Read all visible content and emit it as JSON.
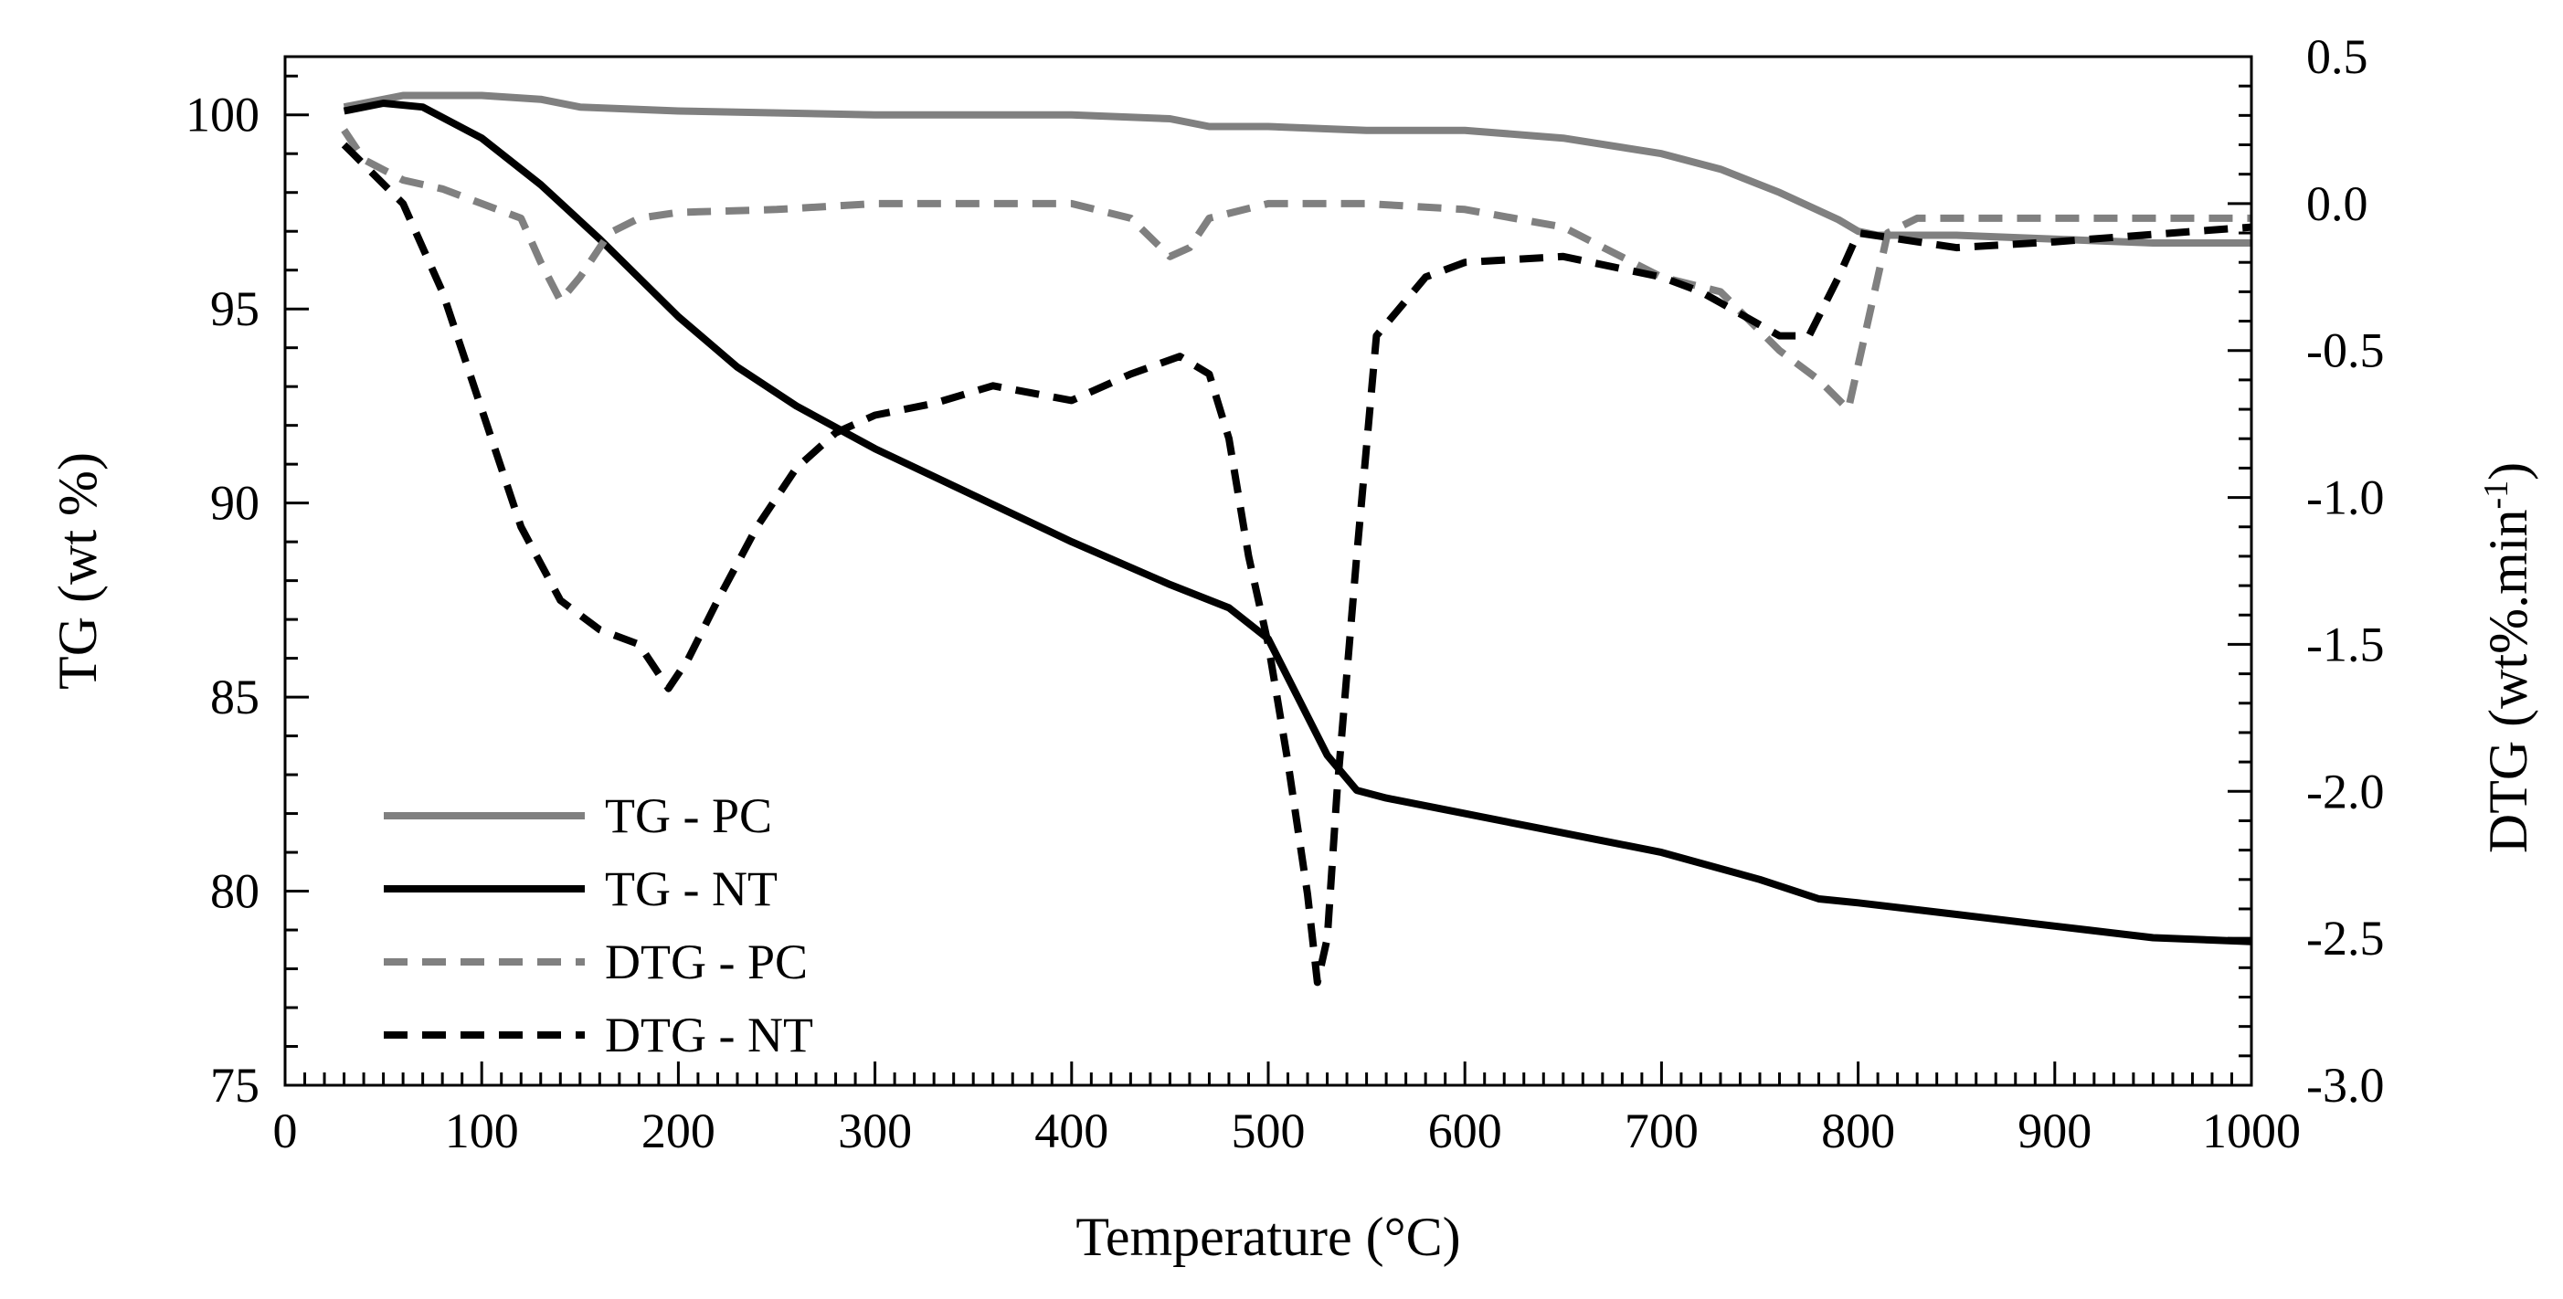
{
  "chart_data": {
    "type": "line",
    "xlabel": "Temperature (°C)",
    "ylabel": "TG (wt %)",
    "y2label_main": "DTG (wt%.min",
    "y2label_sup": "-1",
    "y2label_end": ")",
    "xlim": [
      0,
      1000
    ],
    "ylim": [
      75,
      101.5
    ],
    "y2lim": [
      -3.0,
      0.5
    ],
    "grid": false,
    "legend_position": "bottom-left",
    "x_ticks": [
      "0",
      "100",
      "200",
      "300",
      "400",
      "500",
      "600",
      "700",
      "800",
      "900",
      "1000"
    ],
    "y_ticks": [
      "75",
      "80",
      "85",
      "90",
      "95",
      "100"
    ],
    "y2_ticks": [
      "-3.0",
      "-2.5",
      "-2.0",
      "-1.5",
      "-1.0",
      "-0.5",
      "0.0",
      "0.5"
    ],
    "series": [
      {
        "name": "TG - PC",
        "axis": "left",
        "color": "#808080",
        "dash": "solid",
        "x": [
          30,
          60,
          100,
          130,
          150,
          200,
          300,
          400,
          450,
          470,
          500,
          550,
          600,
          650,
          700,
          730,
          760,
          790,
          800,
          810,
          850,
          900,
          950,
          1000
        ],
        "y": [
          100.2,
          100.5,
          100.5,
          100.4,
          100.2,
          100.1,
          100.0,
          100.0,
          99.9,
          99.7,
          99.7,
          99.6,
          99.6,
          99.4,
          99.0,
          98.6,
          98.0,
          97.3,
          97.0,
          96.9,
          96.9,
          96.8,
          96.7,
          96.7
        ]
      },
      {
        "name": "TG - NT",
        "axis": "left",
        "color": "#000000",
        "dash": "solid",
        "x": [
          30,
          50,
          70,
          100,
          130,
          160,
          200,
          230,
          260,
          300,
          350,
          400,
          450,
          480,
          500,
          515,
          530,
          545,
          560,
          600,
          650,
          700,
          750,
          780,
          800,
          850,
          900,
          950,
          1000
        ],
        "y": [
          100.1,
          100.3,
          100.2,
          99.4,
          98.2,
          96.8,
          94.8,
          93.5,
          92.5,
          91.4,
          90.2,
          89.0,
          87.9,
          87.3,
          86.5,
          85.0,
          83.5,
          82.6,
          82.4,
          82.0,
          81.5,
          81.0,
          80.3,
          79.8,
          79.7,
          79.4,
          79.1,
          78.8,
          78.7
        ]
      },
      {
        "name": "DTG - PC",
        "axis": "right",
        "color": "#808080",
        "dash": "dashed",
        "x": [
          30,
          40,
          60,
          80,
          100,
          120,
          130,
          140,
          150,
          165,
          180,
          200,
          250,
          300,
          350,
          400,
          430,
          450,
          460,
          470,
          500,
          550,
          600,
          650,
          700,
          730,
          760,
          780,
          795,
          805,
          815,
          830,
          900,
          1000
        ],
        "y": [
          0.25,
          0.15,
          0.08,
          0.05,
          0.0,
          -0.05,
          -0.2,
          -0.33,
          -0.25,
          -0.1,
          -0.05,
          -0.03,
          -0.02,
          0.0,
          0.0,
          0.0,
          -0.05,
          -0.18,
          -0.15,
          -0.05,
          0.0,
          0.0,
          -0.02,
          -0.08,
          -0.25,
          -0.3,
          -0.5,
          -0.6,
          -0.7,
          -0.4,
          -0.1,
          -0.05,
          -0.05,
          -0.05
        ]
      },
      {
        "name": "DTG - NT",
        "axis": "right",
        "color": "#000000",
        "dash": "dashed",
        "x": [
          30,
          45,
          60,
          80,
          100,
          120,
          140,
          160,
          180,
          195,
          205,
          220,
          240,
          260,
          280,
          300,
          330,
          360,
          400,
          430,
          455,
          470,
          480,
          490,
          500,
          510,
          520,
          525,
          530,
          535,
          545,
          555,
          580,
          600,
          650,
          700,
          720,
          760,
          775,
          790,
          800,
          850,
          900,
          1000
        ],
        "y": [
          0.2,
          0.1,
          0.0,
          -0.3,
          -0.7,
          -1.1,
          -1.35,
          -1.45,
          -1.5,
          -1.65,
          -1.55,
          -1.35,
          -1.1,
          -0.9,
          -0.78,
          -0.72,
          -0.68,
          -0.62,
          -0.67,
          -0.58,
          -0.52,
          -0.58,
          -0.8,
          -1.2,
          -1.5,
          -1.9,
          -2.35,
          -2.65,
          -2.5,
          -2.0,
          -1.2,
          -0.45,
          -0.25,
          -0.2,
          -0.18,
          -0.25,
          -0.3,
          -0.45,
          -0.45,
          -0.25,
          -0.1,
          -0.15,
          -0.13,
          -0.08
        ]
      }
    ]
  }
}
